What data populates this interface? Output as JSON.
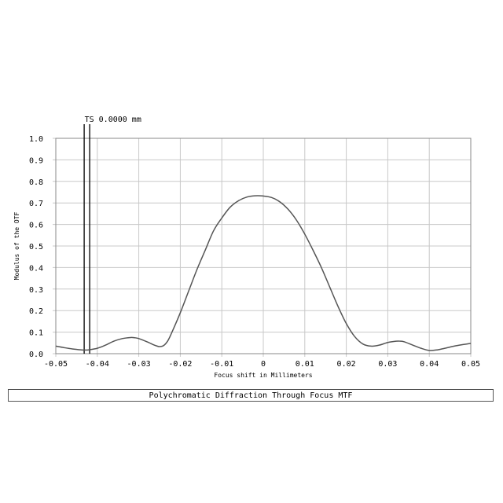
{
  "chart_data": {
    "type": "line",
    "title": "Polychromatic Diffraction Through Focus MTF",
    "xlabel": "Focus shift in Millimeters",
    "ylabel": "Modulus of the OTF",
    "xlim": [
      -0.05,
      0.05
    ],
    "ylim": [
      0.0,
      1.0
    ],
    "x_ticks": [
      "-0.05",
      "-0.04",
      "-0.03",
      "-0.02",
      "-0.01",
      "0",
      "0.01",
      "0.02",
      "0.03",
      "0.04",
      "0.05"
    ],
    "y_ticks": [
      "0.0",
      "0.1",
      "0.2",
      "0.3",
      "0.4",
      "0.5",
      "0.6",
      "0.7",
      "0.8",
      "0.9",
      "1.0"
    ],
    "grid": true,
    "series": [
      {
        "color": "#555555",
        "x": [
          -0.05,
          -0.048,
          -0.046,
          -0.044,
          -0.043,
          -0.042,
          -0.04,
          -0.038,
          -0.036,
          -0.034,
          -0.032,
          -0.031,
          -0.03,
          -0.028,
          -0.026,
          -0.025,
          -0.024,
          -0.023,
          -0.022,
          -0.02,
          -0.018,
          -0.016,
          -0.014,
          -0.012,
          -0.01,
          -0.008,
          -0.006,
          -0.004,
          -0.002,
          0.0,
          0.002,
          0.004,
          0.006,
          0.008,
          0.01,
          0.012,
          0.014,
          0.016,
          0.018,
          0.02,
          0.022,
          0.024,
          0.026,
          0.028,
          0.03,
          0.032,
          0.033,
          0.034,
          0.036,
          0.038,
          0.04,
          0.042,
          0.044,
          0.046,
          0.048,
          0.05
        ],
        "y": [
          0.035,
          0.028,
          0.022,
          0.018,
          0.017,
          0.018,
          0.025,
          0.04,
          0.058,
          0.07,
          0.075,
          0.074,
          0.07,
          0.055,
          0.038,
          0.033,
          0.038,
          0.06,
          0.1,
          0.19,
          0.29,
          0.39,
          0.48,
          0.57,
          0.63,
          0.68,
          0.71,
          0.727,
          0.733,
          0.732,
          0.725,
          0.705,
          0.67,
          0.62,
          0.555,
          0.48,
          0.4,
          0.31,
          0.22,
          0.14,
          0.08,
          0.045,
          0.035,
          0.04,
          0.052,
          0.058,
          0.058,
          0.055,
          0.04,
          0.025,
          0.015,
          0.018,
          0.026,
          0.035,
          0.042,
          0.048
        ]
      }
    ],
    "markers": [
      {
        "label": "TS 0.0000 mm",
        "x": -0.0425
      }
    ]
  }
}
